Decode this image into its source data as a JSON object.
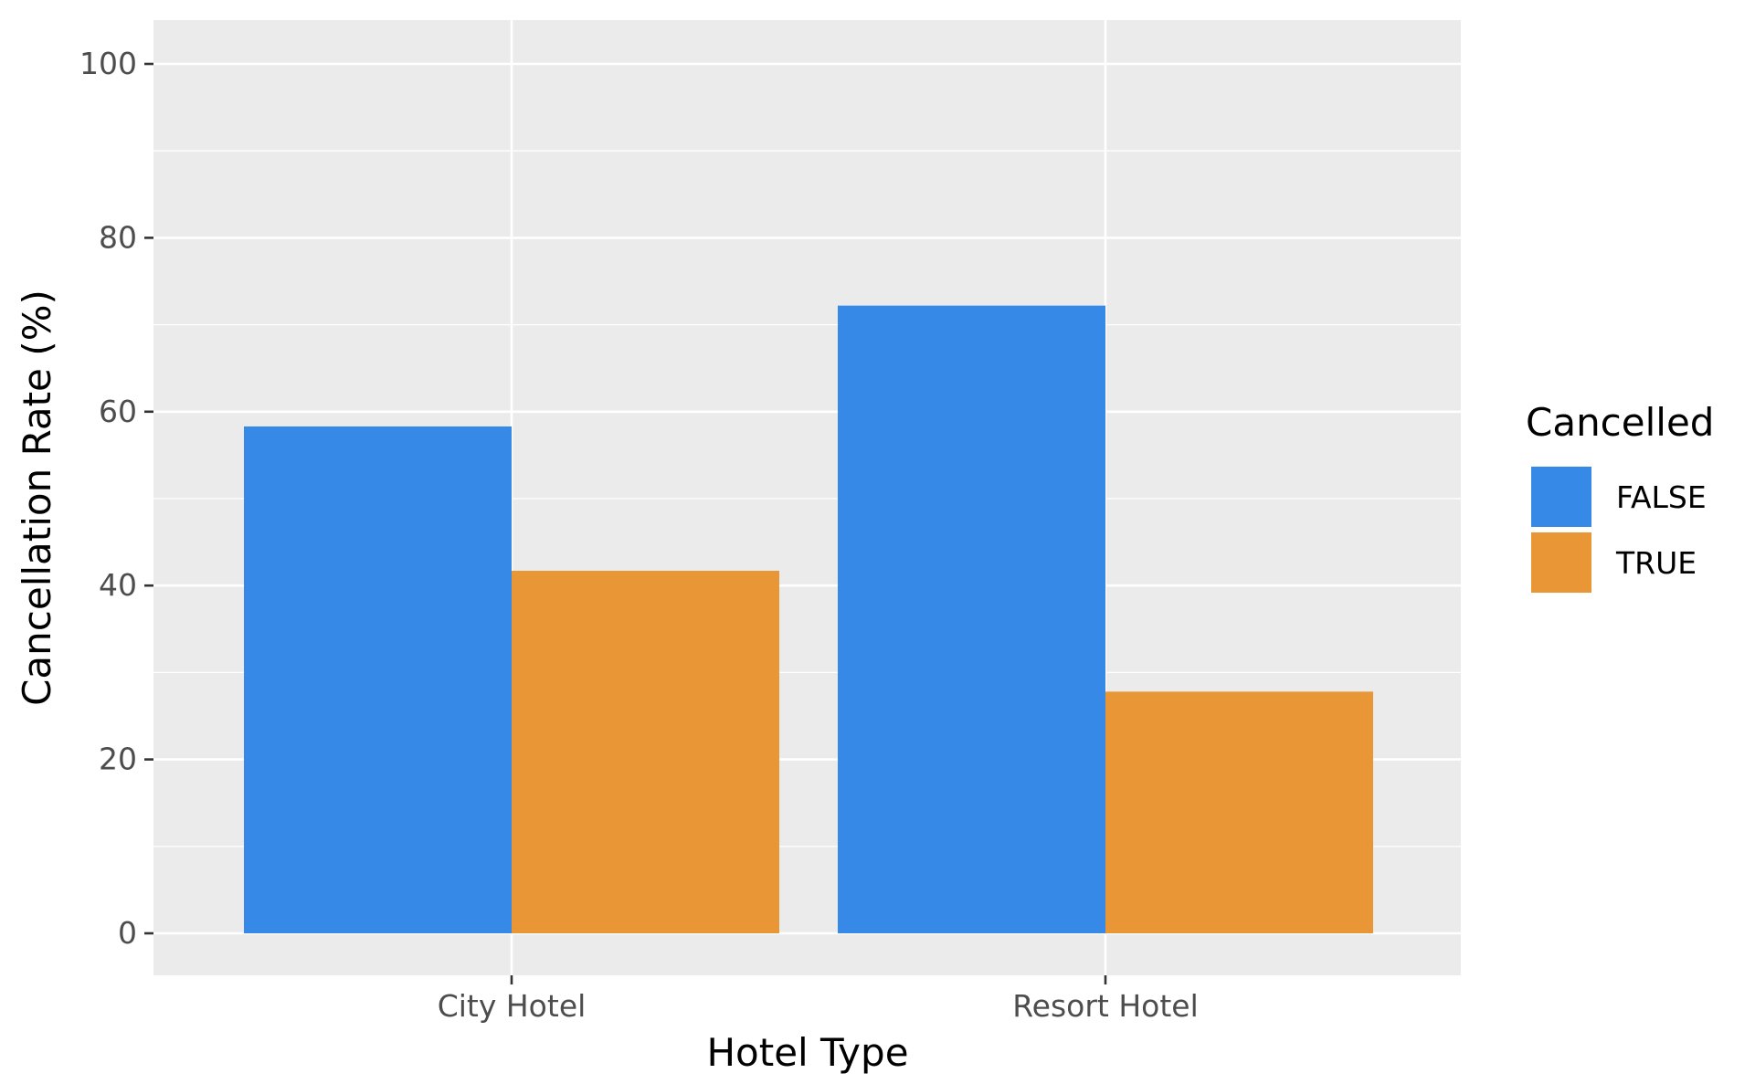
{
  "chart_data": {
    "type": "bar",
    "title": "",
    "xlabel": "Hotel Type",
    "ylabel": "Cancellation Rate (%)",
    "categories": [
      "City Hotel",
      "Resort Hotel"
    ],
    "series": [
      {
        "name": "FALSE",
        "values": [
          58.3,
          72.2
        ],
        "color": "#3789E8"
      },
      {
        "name": "TRUE",
        "values": [
          41.7,
          27.8
        ],
        "color": "#E99736"
      }
    ],
    "ylim": [
      0,
      100
    ],
    "yticks": [
      0,
      20,
      40,
      60,
      80,
      100
    ],
    "grid": true,
    "legend": {
      "title": "Cancelled",
      "placement": "right"
    },
    "panel_background": "#EBEBEB"
  }
}
